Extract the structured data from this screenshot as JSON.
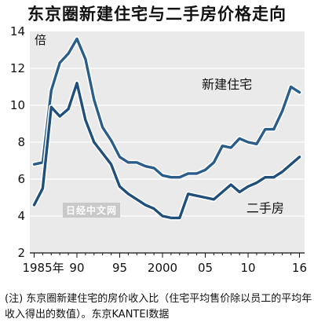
{
  "chart_data": {
    "type": "line",
    "title": "东京圈新建住宅与二手房价格走向",
    "y_unit": "倍",
    "ylim": [
      2,
      14
    ],
    "yticks": [
      2,
      4,
      6,
      8,
      10,
      12,
      14
    ],
    "xlim": [
      1985,
      2016
    ],
    "xticks": [
      {
        "x": 1985,
        "label": "1985年"
      },
      {
        "x": 1990,
        "label": "90"
      },
      {
        "x": 1995,
        "label": "95"
      },
      {
        "x": 2000,
        "label": "2000"
      },
      {
        "x": 2005,
        "label": "05"
      },
      {
        "x": 2010,
        "label": "10"
      },
      {
        "x": 2016,
        "label": "16"
      }
    ],
    "grid": true,
    "series": [
      {
        "name": "新建住宅",
        "color": "#2a5d8a",
        "x": [
          1985,
          1986,
          1987,
          1988,
          1989,
          1990,
          1991,
          1992,
          1993,
          1994,
          1995,
          1996,
          1997,
          1998,
          1999,
          2000,
          2001,
          2002,
          2003,
          2004,
          2005,
          2006,
          2007,
          2008,
          2009,
          2010,
          2011,
          2012,
          2013,
          2014,
          2015,
          2016
        ],
        "y": [
          6.8,
          6.9,
          10.8,
          12.3,
          12.8,
          13.6,
          12.5,
          10.3,
          8.8,
          8.1,
          7.2,
          6.9,
          6.9,
          6.7,
          6.6,
          6.2,
          6.1,
          6.1,
          6.3,
          6.3,
          6.5,
          6.9,
          7.8,
          7.7,
          8.2,
          8.0,
          7.9,
          8.7,
          8.7,
          9.7,
          11.0,
          10.7
        ]
      },
      {
        "name": "二手房",
        "color": "#1f4f7a",
        "x": [
          1985,
          1986,
          1987,
          1988,
          1989,
          1990,
          1991,
          1992,
          1993,
          1994,
          1995,
          1996,
          1997,
          1998,
          1999,
          2000,
          2001,
          2002,
          2003,
          2004,
          2005,
          2006,
          2007,
          2008,
          2009,
          2010,
          2011,
          2012,
          2013,
          2014,
          2015,
          2016
        ],
        "y": [
          4.6,
          5.5,
          9.9,
          9.4,
          9.8,
          11.2,
          9.2,
          8.0,
          7.4,
          6.8,
          5.6,
          5.2,
          4.9,
          4.6,
          4.4,
          4.0,
          3.9,
          3.9,
          5.2,
          5.1,
          5.0,
          4.9,
          5.3,
          5.7,
          5.3,
          5.6,
          5.8,
          6.1,
          6.1,
          6.4,
          6.8,
          7.2
        ]
      }
    ]
  },
  "note": "(注) 东京圈新建住宅的房价收入比（住宅平均售价除以员工的平均年收入得出的数值）。东京KANTEI数据",
  "watermark": "日经中文网",
  "colors": {
    "background": "#ffffff",
    "plot_background": "#eaeaea",
    "grid": "#ffffff",
    "axis": "#111111",
    "halo": "#ffffff"
  }
}
